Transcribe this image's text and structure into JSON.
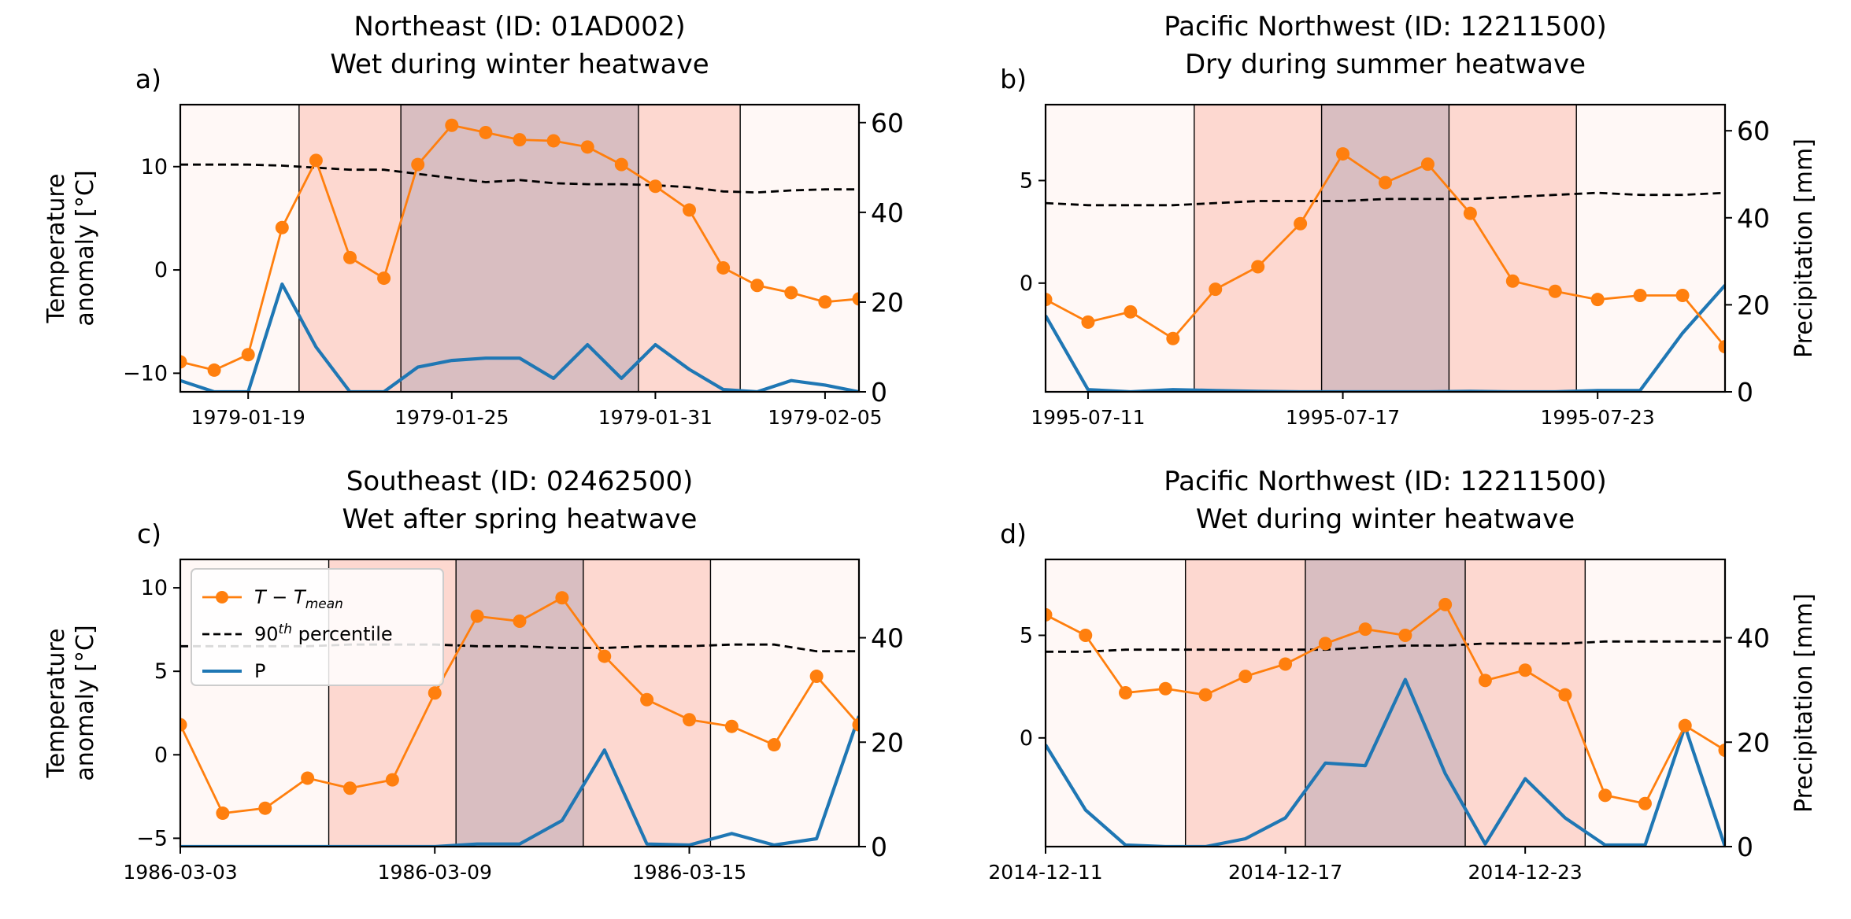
{
  "chart_data": [
    {
      "type": "line",
      "panel_label": "a)",
      "title": "Northeast (ID: 01AD002)",
      "subtitle": "Wet during winter heatwave",
      "ylabel": "Temperature\nanomaly [°C]",
      "ylabel_right": "",
      "x_start": "1979-01-17",
      "xlim": [
        0,
        20
      ],
      "xticks": [
        {
          "x": 2,
          "label": "1979-01-19"
        },
        {
          "x": 8,
          "label": "1979-01-25"
        },
        {
          "x": 14,
          "label": "1979-01-31"
        },
        {
          "x": 19,
          "label": "1979-02-05"
        }
      ],
      "ylim": [
        -11.8,
        16
      ],
      "yticks": [
        -10,
        0,
        10
      ],
      "ylim_right": [
        0,
        64
      ],
      "yticks_right": [
        0,
        20,
        40,
        60
      ],
      "shading": [
        {
          "x0": 0,
          "x1": 3.5,
          "level": "low"
        },
        {
          "x0": 3.5,
          "x1": 6.5,
          "level": "mid"
        },
        {
          "x0": 6.5,
          "x1": 13.5,
          "level": "high"
        },
        {
          "x0": 13.5,
          "x1": 16.5,
          "level": "mid"
        },
        {
          "x0": 16.5,
          "x1": 20,
          "level": "low"
        }
      ],
      "series": [
        {
          "name": "T − T_mean",
          "axis": "left",
          "style": "marker-line",
          "color": "#ff7f0e",
          "x": [
            0,
            1,
            2,
            3,
            4,
            5,
            6,
            7,
            8,
            9,
            10,
            11,
            12,
            13,
            14,
            15,
            16,
            17,
            18,
            19,
            20
          ],
          "values": [
            -8.9,
            -9.7,
            -8.2,
            4.1,
            10.6,
            1.2,
            -0.8,
            10.2,
            14.0,
            13.3,
            12.6,
            12.5,
            11.9,
            10.2,
            8.1,
            5.8,
            0.2,
            -1.5,
            -2.2,
            -3.1,
            -2.8
          ]
        },
        {
          "name": "90th percentile",
          "axis": "left",
          "style": "dashed",
          "color": "#000000",
          "x": [
            0,
            2,
            3,
            4,
            5,
            6,
            7,
            8,
            9,
            10,
            11,
            12,
            13,
            14,
            15,
            16,
            17,
            18,
            19,
            20
          ],
          "values": [
            10.2,
            10.2,
            10.1,
            9.9,
            9.7,
            9.7,
            9.3,
            8.9,
            8.5,
            8.7,
            8.4,
            8.3,
            8.3,
            8.2,
            8.0,
            7.6,
            7.5,
            7.7,
            7.8,
            7.8
          ]
        },
        {
          "name": "P",
          "axis": "right",
          "style": "line",
          "color": "#1f77b4",
          "x": [
            0,
            1,
            2,
            3,
            4,
            5,
            6,
            7,
            8,
            9,
            10,
            11,
            12,
            13,
            14,
            15,
            16,
            17,
            18,
            19,
            20
          ],
          "values": [
            2.5,
            0,
            0,
            24,
            10,
            0,
            0,
            5.5,
            7,
            7.5,
            7.5,
            3,
            10.5,
            3,
            10.5,
            5,
            0.5,
            0,
            2.5,
            1.5,
            0
          ]
        }
      ]
    },
    {
      "type": "line",
      "panel_label": "b)",
      "title": "Pacific Northwest (ID: 12211500)",
      "subtitle": "Dry during summer heatwave",
      "ylabel": "",
      "ylabel_right": "Precipitation [mm]",
      "x_start": "1995-07-10",
      "xlim": [
        0,
        16
      ],
      "xticks": [
        {
          "x": 1,
          "label": "1995-07-11"
        },
        {
          "x": 7,
          "label": "1995-07-17"
        },
        {
          "x": 13,
          "label": "1995-07-23"
        }
      ],
      "ylim": [
        -5.3,
        8.7
      ],
      "yticks": [
        0,
        5
      ],
      "ylim_right": [
        0,
        66
      ],
      "yticks_right": [
        0,
        20,
        40,
        60
      ],
      "shading": [
        {
          "x0": 0,
          "x1": 3.5,
          "level": "low"
        },
        {
          "x0": 3.5,
          "x1": 6.5,
          "level": "mid"
        },
        {
          "x0": 6.5,
          "x1": 9.5,
          "level": "high"
        },
        {
          "x0": 9.5,
          "x1": 12.5,
          "level": "mid"
        },
        {
          "x0": 12.5,
          "x1": 16,
          "level": "low"
        }
      ],
      "series": [
        {
          "name": "T − T_mean",
          "axis": "left",
          "style": "marker-line",
          "color": "#ff7f0e",
          "x": [
            0,
            1,
            2,
            3,
            4,
            5,
            6,
            7,
            8,
            9,
            10,
            11,
            12,
            13,
            14,
            15,
            16
          ],
          "values": [
            -0.8,
            -1.9,
            -1.4,
            -2.7,
            -0.3,
            0.8,
            2.9,
            6.3,
            4.9,
            5.8,
            3.4,
            0.1,
            -0.4,
            -0.8,
            -0.6,
            -0.6,
            -3.1
          ]
        },
        {
          "name": "90th percentile",
          "axis": "left",
          "style": "dashed",
          "color": "#000000",
          "x": [
            0,
            1,
            2,
            3,
            4,
            5,
            6,
            7,
            8,
            9,
            10,
            11,
            12,
            13,
            14,
            15,
            16
          ],
          "values": [
            3.9,
            3.8,
            3.8,
            3.8,
            3.9,
            4.0,
            4.0,
            4.0,
            4.1,
            4.1,
            4.1,
            4.2,
            4.3,
            4.4,
            4.3,
            4.3,
            4.4
          ]
        },
        {
          "name": "P",
          "axis": "right",
          "style": "line",
          "color": "#1f77b4",
          "x": [
            0,
            1,
            2,
            3,
            4,
            5,
            6,
            7,
            8,
            9,
            10,
            11,
            12,
            13,
            14,
            15,
            16
          ],
          "values": [
            17.5,
            0.5,
            0,
            0.5,
            0.3,
            0.1,
            0,
            0,
            0,
            0,
            0.1,
            0,
            0,
            0.3,
            0.3,
            13.5,
            24.5
          ]
        }
      ]
    },
    {
      "type": "line",
      "panel_label": "c)",
      "title": "Southeast (ID: 02462500)",
      "subtitle": "Wet after spring heatwave",
      "ylabel": "Temperature\nanomaly [°C]",
      "ylabel_right": "",
      "x_start": "1986-03-03",
      "xlim": [
        0,
        16
      ],
      "xticks": [
        {
          "x": 0,
          "label": "1986-03-03"
        },
        {
          "x": 6,
          "label": "1986-03-09"
        },
        {
          "x": 12,
          "label": "1986-03-15"
        }
      ],
      "ylim": [
        -5.5,
        11.7
      ],
      "yticks": [
        -5,
        0,
        5,
        10
      ],
      "ylim_right": [
        0,
        55
      ],
      "yticks_right": [
        0,
        20,
        40
      ],
      "shading": [
        {
          "x0": 0,
          "x1": 3.5,
          "level": "low"
        },
        {
          "x0": 3.5,
          "x1": 6.5,
          "level": "mid"
        },
        {
          "x0": 6.5,
          "x1": 9.5,
          "level": "high"
        },
        {
          "x0": 9.5,
          "x1": 12.5,
          "level": "mid"
        },
        {
          "x0": 12.5,
          "x1": 16,
          "level": "low"
        }
      ],
      "series": [
        {
          "name": "T − T_mean",
          "axis": "left",
          "style": "marker-line",
          "color": "#ff7f0e",
          "x": [
            0,
            1,
            2,
            3,
            4,
            5,
            6,
            7,
            8,
            9,
            10,
            11,
            12,
            13,
            14,
            15,
            16
          ],
          "values": [
            1.8,
            -3.5,
            -3.2,
            -1.4,
            -2.0,
            -1.5,
            3.7,
            8.3,
            8.0,
            9.4,
            5.9,
            3.3,
            2.1,
            1.7,
            0.6,
            4.7,
            1.8
          ]
        },
        {
          "name": "90th percentile",
          "axis": "left",
          "style": "dashed",
          "color": "#000000",
          "x": [
            0,
            1,
            2,
            3,
            4,
            5,
            6,
            7,
            8,
            9,
            10,
            11,
            12,
            13,
            14,
            15,
            16
          ],
          "values": [
            6.5,
            6.5,
            6.5,
            6.5,
            6.6,
            6.6,
            6.6,
            6.5,
            6.5,
            6.4,
            6.4,
            6.5,
            6.5,
            6.6,
            6.6,
            6.2,
            6.2
          ]
        },
        {
          "name": "P",
          "axis": "right",
          "style": "line",
          "color": "#1f77b4",
          "x": [
            0,
            1,
            2,
            3,
            4,
            5,
            6,
            7,
            8,
            9,
            10,
            11,
            12,
            13,
            14,
            15,
            16
          ],
          "values": [
            0,
            0,
            0,
            0,
            0,
            0,
            0,
            0.5,
            0.5,
            5,
            18.5,
            0.5,
            0.3,
            2.5,
            0.3,
            1.5,
            25
          ]
        }
      ],
      "legend": {
        "placement": "upper left",
        "entries": [
          {
            "label": "T − T",
            "sub": "mean",
            "style": "marker-line",
            "color": "#ff7f0e"
          },
          {
            "label": "90",
            "sup": "th",
            "label_rest": " percentile",
            "style": "dashed",
            "color": "#000000"
          },
          {
            "label": "P",
            "style": "line",
            "color": "#1f77b4"
          }
        ]
      }
    },
    {
      "type": "line",
      "panel_label": "d)",
      "title": "Pacific Northwest (ID: 12211500)",
      "subtitle": "Wet during winter heatwave",
      "ylabel": "",
      "ylabel_right": "Precipitation [mm]",
      "x_start": "2014-12-11",
      "xlim": [
        0,
        17
      ],
      "xticks": [
        {
          "x": 0,
          "label": "2014-12-11"
        },
        {
          "x": 6,
          "label": "2014-12-17"
        },
        {
          "x": 12,
          "label": "2014-12-23"
        }
      ],
      "ylim": [
        -5.3,
        8.7
      ],
      "yticks": [
        0,
        5
      ],
      "ylim_right": [
        0,
        55
      ],
      "yticks_right": [
        0,
        20,
        40
      ],
      "shading": [
        {
          "x0": 0,
          "x1": 3.5,
          "level": "low"
        },
        {
          "x0": 3.5,
          "x1": 6.5,
          "level": "mid"
        },
        {
          "x0": 6.5,
          "x1": 10.5,
          "level": "high"
        },
        {
          "x0": 10.5,
          "x1": 13.5,
          "level": "mid"
        },
        {
          "x0": 13.5,
          "x1": 17,
          "level": "low"
        }
      ],
      "series": [
        {
          "name": "T − T_mean",
          "axis": "left",
          "style": "marker-line",
          "color": "#ff7f0e",
          "x": [
            0,
            1,
            2,
            3,
            4,
            5,
            6,
            7,
            8,
            9,
            10,
            11,
            12,
            13,
            14,
            15,
            16,
            17
          ],
          "values": [
            6.0,
            5.0,
            2.2,
            2.4,
            2.1,
            3.0,
            3.6,
            4.6,
            5.3,
            5.0,
            6.5,
            2.8,
            3.3,
            2.1,
            -2.8,
            -3.2,
            0.6,
            -0.6
          ]
        },
        {
          "name": "90th percentile",
          "axis": "left",
          "style": "dashed",
          "color": "#000000",
          "x": [
            0,
            1,
            2,
            3,
            4,
            5,
            6,
            7,
            8,
            9,
            10,
            11,
            12,
            13,
            14,
            15,
            16,
            17
          ],
          "values": [
            4.2,
            4.2,
            4.3,
            4.3,
            4.3,
            4.3,
            4.3,
            4.3,
            4.4,
            4.5,
            4.5,
            4.6,
            4.6,
            4.6,
            4.7,
            4.7,
            4.7,
            4.7
          ]
        },
        {
          "name": "P",
          "axis": "right",
          "style": "line",
          "color": "#1f77b4",
          "x": [
            0,
            1,
            2,
            3,
            4,
            5,
            6,
            7,
            8,
            9,
            10,
            11,
            12,
            13,
            14,
            15,
            16,
            17
          ],
          "values": [
            19.5,
            7,
            0.3,
            0,
            0,
            1.5,
            5.5,
            16,
            15.5,
            32,
            14,
            0.5,
            13,
            5.5,
            0.3,
            0.3,
            23,
            0
          ]
        }
      ]
    }
  ]
}
